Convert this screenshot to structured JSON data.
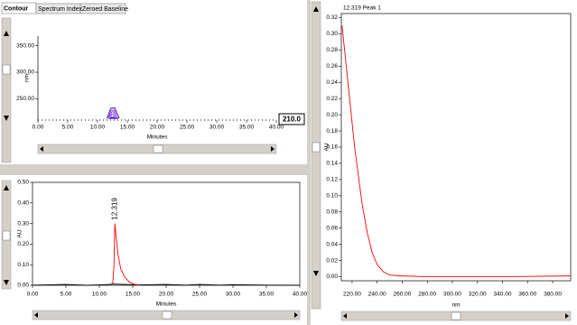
{
  "ui": {
    "tabs": [
      "Contour",
      "Spectrum Index",
      "Zeroed Baseline"
    ],
    "wavelength": "210.0"
  },
  "chart_data": [
    {
      "type": "contour",
      "xlabel": "Minutes",
      "ylabel": "nm",
      "xlim": [
        0,
        40
      ],
      "ylim": [
        210,
        368
      ],
      "xticks": [
        {
          "value": 0,
          "label": "0.00"
        },
        {
          "value": 5,
          "label": "5.00"
        },
        {
          "value": 10,
          "label": "10.00"
        },
        {
          "value": 15,
          "label": "15.00"
        },
        {
          "value": 20,
          "label": "20.00"
        },
        {
          "value": 25,
          "label": "25.00"
        },
        {
          "value": 30,
          "label": "30.00"
        },
        {
          "value": 35,
          "label": "35.00"
        },
        {
          "value": 40,
          "label": "40.00"
        }
      ],
      "yticks": [
        {
          "value": 250,
          "label": "250.00"
        },
        {
          "value": 300,
          "label": "300.00"
        },
        {
          "value": 350,
          "label": "350.00"
        }
      ],
      "series": [
        {
          "color": "#000080",
          "x": [
            11.6,
            12.2,
            12.9,
            13.6,
            13.2,
            11.8
          ],
          "y": [
            213,
            232,
            233,
            214,
            213,
            213
          ]
        },
        {
          "color": "#8000ff",
          "x": [
            11.8,
            12.3,
            12.8,
            13.3,
            12.0
          ],
          "y": [
            214,
            228,
            229,
            214,
            214
          ]
        },
        {
          "color": "#ff00ff",
          "x": [
            12.0,
            12.4,
            12.7,
            13.0,
            12.1
          ],
          "y": [
            215,
            225,
            226,
            215,
            215
          ]
        },
        {
          "color": "#00a0a0",
          "x": [
            12.2,
            12.4,
            12.6,
            12.8,
            12.2
          ],
          "y": [
            216,
            221,
            222,
            216,
            216
          ]
        }
      ]
    },
    {
      "type": "line",
      "xlabel": "Minutes",
      "ylabel": "AU",
      "annotation": "12.319",
      "annotation_x": 12.319,
      "annotation_y": 0.3,
      "xlim": [
        0,
        40
      ],
      "ylim": [
        0,
        0.5
      ],
      "xticks": [
        {
          "value": 0,
          "label": "0.00"
        },
        {
          "value": 5,
          "label": "5.00"
        },
        {
          "value": 10,
          "label": "10.00"
        },
        {
          "value": 15,
          "label": "15.00"
        },
        {
          "value": 20,
          "label": "20.00"
        },
        {
          "value": 25,
          "label": "25.00"
        },
        {
          "value": 30,
          "label": "30.00"
        },
        {
          "value": 35,
          "label": "35.00"
        },
        {
          "value": 40,
          "label": "40.00"
        }
      ],
      "yticks": [
        {
          "value": 0,
          "label": "0.00"
        },
        {
          "value": 0.1,
          "label": "0.10"
        },
        {
          "value": 0.2,
          "label": "0.20"
        },
        {
          "value": 0.3,
          "label": "0.30"
        },
        {
          "value": 0.4,
          "label": "0.40"
        },
        {
          "value": 0.5,
          "label": "0.50"
        }
      ],
      "series": [
        {
          "color": "#000000",
          "x": [
            0,
            2,
            5,
            8,
            10,
            11.5,
            12.0,
            16,
            20,
            23,
            25,
            28,
            30,
            35,
            40
          ],
          "y": [
            0,
            0.002,
            0.004,
            0,
            0.002,
            0.004,
            0.006,
            0.002,
            0.004,
            0.001,
            0.004,
            0.001,
            0.003,
            0.001,
            0
          ]
        },
        {
          "color": "#ff0000",
          "x": [
            12.0,
            12.2,
            12.319,
            12.5,
            12.8,
            13.2,
            13.8,
            14.5,
            15.2,
            16
          ],
          "y": [
            0.006,
            0.1,
            0.3,
            0.24,
            0.15,
            0.08,
            0.04,
            0.015,
            0.005,
            0.002
          ]
        }
      ]
    },
    {
      "type": "line",
      "title": "12.319 Peak 1",
      "xlabel": "nm",
      "ylabel": "AU",
      "xlim": [
        211.4,
        394.4
      ],
      "ylim": [
        -0.005,
        0.325
      ],
      "xticks": [
        {
          "value": 220,
          "label": "220.00"
        },
        {
          "value": 240,
          "label": "240.00"
        },
        {
          "value": 260,
          "label": "260.00"
        },
        {
          "value": 280,
          "label": "280.00"
        },
        {
          "value": 300,
          "label": "300.00"
        },
        {
          "value": 320,
          "label": "320.00"
        },
        {
          "value": 340,
          "label": "340.00"
        },
        {
          "value": 360,
          "label": "360.00"
        },
        {
          "value": 380,
          "label": "380.00"
        }
      ],
      "yticks": [
        {
          "value": 0,
          "label": "0.00"
        },
        {
          "value": 0.02,
          "label": "0.02"
        },
        {
          "value": 0.04,
          "label": "0.04"
        },
        {
          "value": 0.06,
          "label": "0.06"
        },
        {
          "value": 0.08,
          "label": "0.08"
        },
        {
          "value": 0.1,
          "label": "0.10"
        },
        {
          "value": 0.12,
          "label": "0.12"
        },
        {
          "value": 0.14,
          "label": "0.14"
        },
        {
          "value": 0.16,
          "label": "0.16"
        },
        {
          "value": 0.18,
          "label": "0.18"
        },
        {
          "value": 0.2,
          "label": "0.20"
        },
        {
          "value": 0.22,
          "label": "0.22"
        },
        {
          "value": 0.24,
          "label": "0.24"
        },
        {
          "value": 0.26,
          "label": "0.26"
        },
        {
          "value": 0.28,
          "label": "0.28"
        },
        {
          "value": 0.3,
          "label": "0.30"
        },
        {
          "value": 0.32,
          "label": "0.32"
        }
      ],
      "series": [
        {
          "color": "#ff0000",
          "x": [
            212,
            214,
            216,
            218,
            220,
            222,
            225,
            228,
            232,
            236,
            240,
            245,
            250,
            260,
            280,
            300,
            340,
            394
          ],
          "y": [
            0.31,
            0.28,
            0.25,
            0.22,
            0.19,
            0.16,
            0.125,
            0.09,
            0.055,
            0.03,
            0.015,
            0.006,
            0.002,
            0.001,
            0,
            0,
            0,
            0.001
          ]
        }
      ]
    }
  ]
}
